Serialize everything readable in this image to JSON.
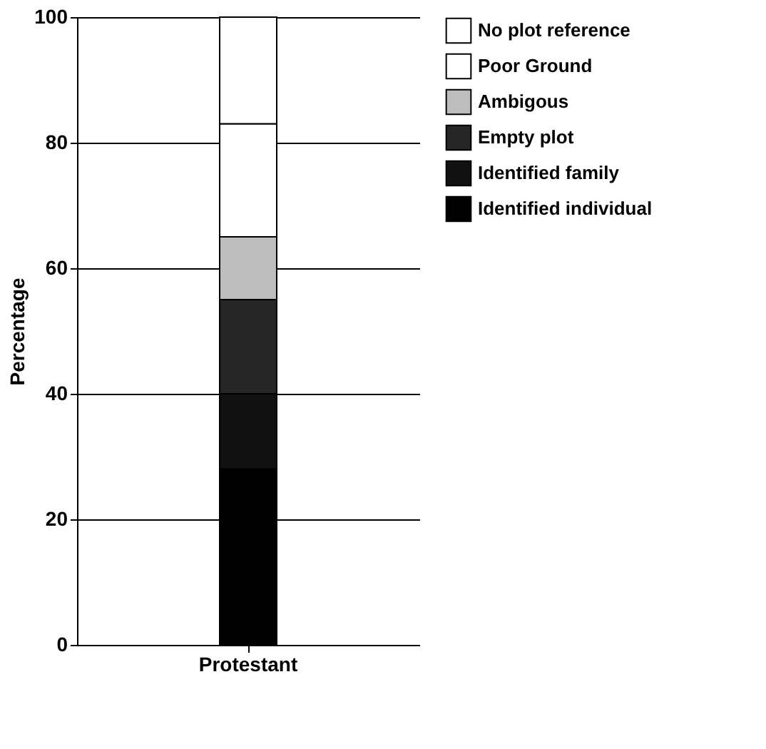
{
  "chart_data": {
    "type": "bar",
    "stacked": true,
    "categories": [
      "Protestant"
    ],
    "ylabel": "Percentage",
    "ylim": [
      0,
      100
    ],
    "yticks": [
      0,
      20,
      40,
      60,
      80,
      100
    ],
    "grid": "y",
    "legend": "right",
    "series": [
      {
        "name": "Identified individual",
        "color": "#000000",
        "values": [
          28
        ]
      },
      {
        "name": "Identified family",
        "color": "#111111",
        "values": [
          12
        ]
      },
      {
        "name": "Empty plot",
        "color": "#262626",
        "values": [
          15
        ]
      },
      {
        "name": "Ambigous",
        "color": "#bdbdbd",
        "values": [
          10
        ]
      },
      {
        "name": "Poor Ground",
        "color": "#ffffff",
        "values": [
          18
        ]
      },
      {
        "name": "No plot reference",
        "color": "#ffffff",
        "values": [
          17
        ]
      }
    ]
  }
}
